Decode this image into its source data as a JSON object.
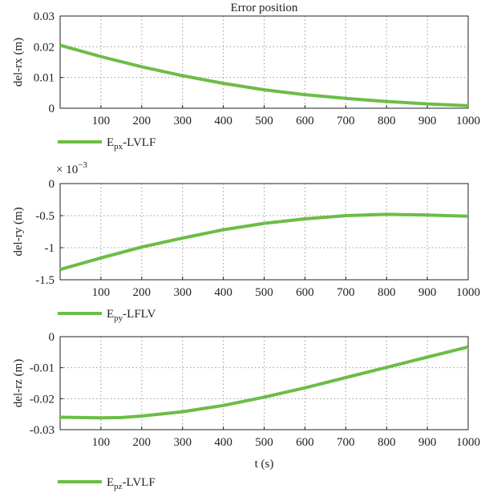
{
  "chart_data": [
    {
      "type": "line",
      "title": "Error position",
      "xlabel": "",
      "ylabel": "del-rx (m)",
      "xlim": [
        0,
        1000
      ],
      "ylim": [
        0,
        0.03
      ],
      "xticks": [
        "100",
        "200",
        "300",
        "400",
        "500",
        "600",
        "700",
        "800",
        "900",
        "1000"
      ],
      "yticks": [
        "0",
        "0.01",
        "0.02",
        "0.03"
      ],
      "grid": true,
      "legend_position": "below",
      "legend": {
        "main": "E",
        "sub": "px",
        "suffix": "-LVLF"
      },
      "series": [
        {
          "name": "Epx-LVLF",
          "color": "#6cbd45",
          "x": [
            0,
            100,
            200,
            300,
            400,
            500,
            600,
            700,
            800,
            900,
            1000
          ],
          "y": [
            0.0205,
            0.0168,
            0.0135,
            0.0106,
            0.0081,
            0.006,
            0.0044,
            0.0032,
            0.0022,
            0.0014,
            0.0008
          ]
        }
      ]
    },
    {
      "type": "line",
      "title": "",
      "xlabel": "",
      "ylabel": "del-ry (m)",
      "scale_note": {
        "base": "× 10",
        "exp": "−3"
      },
      "xlim": [
        0,
        1000
      ],
      "ylim": [
        -1.5,
        0
      ],
      "xticks": [
        "100",
        "200",
        "300",
        "400",
        "500",
        "600",
        "700",
        "800",
        "900",
        "1000"
      ],
      "yticks": [
        "0",
        "-0.5",
        "-1",
        "-1.5"
      ],
      "grid": true,
      "legend_position": "below",
      "legend": {
        "main": "E",
        "sub": "py",
        "suffix": "-LFLV"
      },
      "series": [
        {
          "name": "Epy-LFLV",
          "color": "#6cbd45",
          "x": [
            0,
            100,
            200,
            300,
            400,
            500,
            600,
            700,
            800,
            900,
            1000
          ],
          "y": [
            -1.34,
            -1.16,
            -0.99,
            -0.85,
            -0.72,
            -0.62,
            -0.55,
            -0.5,
            -0.48,
            -0.49,
            -0.51
          ]
        }
      ]
    },
    {
      "type": "line",
      "title": "",
      "xlabel": "t (s)",
      "ylabel": "del-rz (m)",
      "xlim": [
        0,
        1000
      ],
      "ylim": [
        -0.03,
        0
      ],
      "xticks": [
        "100",
        "200",
        "300",
        "400",
        "500",
        "600",
        "700",
        "800",
        "900",
        "1000"
      ],
      "yticks": [
        "0",
        "-0.01",
        "-0.02",
        "-0.03"
      ],
      "grid": true,
      "legend_position": "below",
      "legend": {
        "main": "E",
        "sub": "pz",
        "suffix": "-LVLF"
      },
      "series": [
        {
          "name": "Epz-LVLF",
          "color": "#6cbd45",
          "x": [
            0,
            100,
            150,
            200,
            300,
            400,
            500,
            600,
            700,
            800,
            900,
            1000
          ],
          "y": [
            -0.026,
            -0.0262,
            -0.0261,
            -0.0256,
            -0.0242,
            -0.0222,
            -0.0195,
            -0.0165,
            -0.0132,
            -0.0099,
            -0.0066,
            -0.0033
          ]
        }
      ]
    }
  ]
}
